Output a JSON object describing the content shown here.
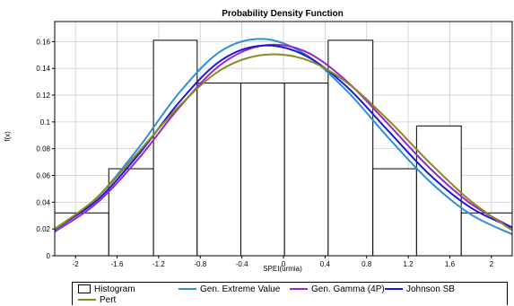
{
  "chart_data": {
    "type": "bar",
    "title": "Probability Density Function",
    "xlabel": "SPEI(urmia)",
    "ylabel": "f(x)",
    "xlim": [
      -2.2,
      2.2
    ],
    "ylim": [
      0,
      0.175
    ],
    "x_ticks": [
      "-2",
      "-1.6",
      "-1.2",
      "-0.8",
      "-0.4",
      "0",
      "0.4",
      "0.8",
      "1.2",
      "1.6",
      "2"
    ],
    "y_ticks": [
      "0",
      "0.02",
      "0.04",
      "0.06",
      "0.08",
      "0.1",
      "0.12",
      "0.14",
      "0.16"
    ],
    "grid": true,
    "histogram": {
      "name": "Histogram",
      "bins": [
        {
          "x0": -2.2,
          "x1": -1.68,
          "value": 0.032
        },
        {
          "x0": -1.68,
          "x1": -1.25,
          "value": 0.065
        },
        {
          "x0": -1.25,
          "x1": -0.83,
          "value": 0.161
        },
        {
          "x0": -0.83,
          "x1": -0.41,
          "value": 0.129
        },
        {
          "x0": -0.41,
          "x1": 0.01,
          "value": 0.129
        },
        {
          "x0": 0.01,
          "x1": 0.43,
          "value": 0.129
        },
        {
          "x0": 0.43,
          "x1": 0.86,
          "value": 0.161
        },
        {
          "x0": 0.86,
          "x1": 1.28,
          "value": 0.065
        },
        {
          "x0": 1.28,
          "x1": 1.71,
          "value": 0.097
        },
        {
          "x0": 1.71,
          "x1": 2.2,
          "value": 0.032
        }
      ]
    },
    "series": [
      {
        "name": "Gen. Extreme Value",
        "color": "#2d8fd5",
        "x": [
          -2.2,
          -1.8,
          -1.4,
          -1.0,
          -0.6,
          -0.2,
          0.2,
          0.6,
          1.0,
          1.4,
          1.8,
          2.2
        ],
        "y": [
          0.019,
          0.043,
          0.08,
          0.122,
          0.153,
          0.162,
          0.151,
          0.124,
          0.089,
          0.056,
          0.031,
          0.016
        ]
      },
      {
        "name": "Gen. Gamma (4P)",
        "color": "#9b27c4",
        "x": [
          -2.2,
          -1.8,
          -1.4,
          -1.0,
          -0.6,
          -0.2,
          0.2,
          0.6,
          1.0,
          1.4,
          1.8,
          2.2
        ],
        "y": [
          0.018,
          0.039,
          0.072,
          0.111,
          0.143,
          0.157,
          0.153,
          0.131,
          0.099,
          0.066,
          0.039,
          0.021
        ]
      },
      {
        "name": "Johnson SB",
        "color": "#1a1ad6",
        "x": [
          -2.2,
          -1.8,
          -1.4,
          -1.0,
          -0.6,
          -0.2,
          0.2,
          0.6,
          1.0,
          1.4,
          1.8,
          2.2
        ],
        "y": [
          0.02,
          0.041,
          0.075,
          0.115,
          0.146,
          0.157,
          0.15,
          0.127,
          0.094,
          0.061,
          0.036,
          0.021
        ]
      },
      {
        "name": "Pert",
        "color": "#8a8a22",
        "x": [
          -2.2,
          -1.8,
          -1.4,
          -1.0,
          -0.6,
          -0.2,
          0.2,
          0.6,
          1.0,
          1.4,
          1.8,
          2.2
        ],
        "y": [
          0.02,
          0.043,
          0.077,
          0.112,
          0.139,
          0.15,
          0.147,
          0.13,
          0.102,
          0.07,
          0.041,
          0.019
        ]
      }
    ],
    "legend_placement": "bottom"
  },
  "legend": {
    "histogram_label": "Histogram",
    "gev_label": "Gen. Extreme Value",
    "gengamma_label": "Gen. Gamma (4P)",
    "johnson_label": "Johnson SB",
    "pert_label": "Pert"
  }
}
